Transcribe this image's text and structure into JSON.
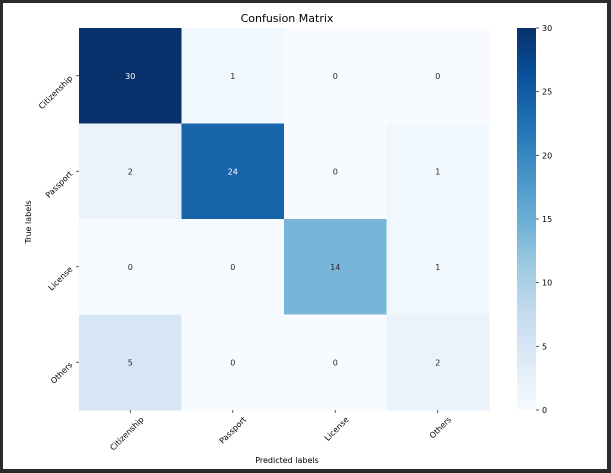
{
  "chart_data": {
    "type": "heatmap",
    "title": "Confusion Matrix",
    "xlabel": "Predicted labels",
    "ylabel": "True labels",
    "x_categories": [
      "Citizenship",
      "Passport",
      "License",
      "Others"
    ],
    "y_categories": [
      "Citizenship",
      "Passport",
      "License",
      "Others"
    ],
    "values": [
      [
        30,
        1,
        0,
        0
      ],
      [
        2,
        24,
        0,
        1
      ],
      [
        0,
        0,
        14,
        1
      ],
      [
        5,
        0,
        0,
        2
      ]
    ],
    "colormap": "Blues",
    "vmin": 0,
    "vmax": 30,
    "colorbar_ticks": [
      0,
      5,
      10,
      15,
      20,
      25,
      30
    ],
    "annotations": true
  }
}
